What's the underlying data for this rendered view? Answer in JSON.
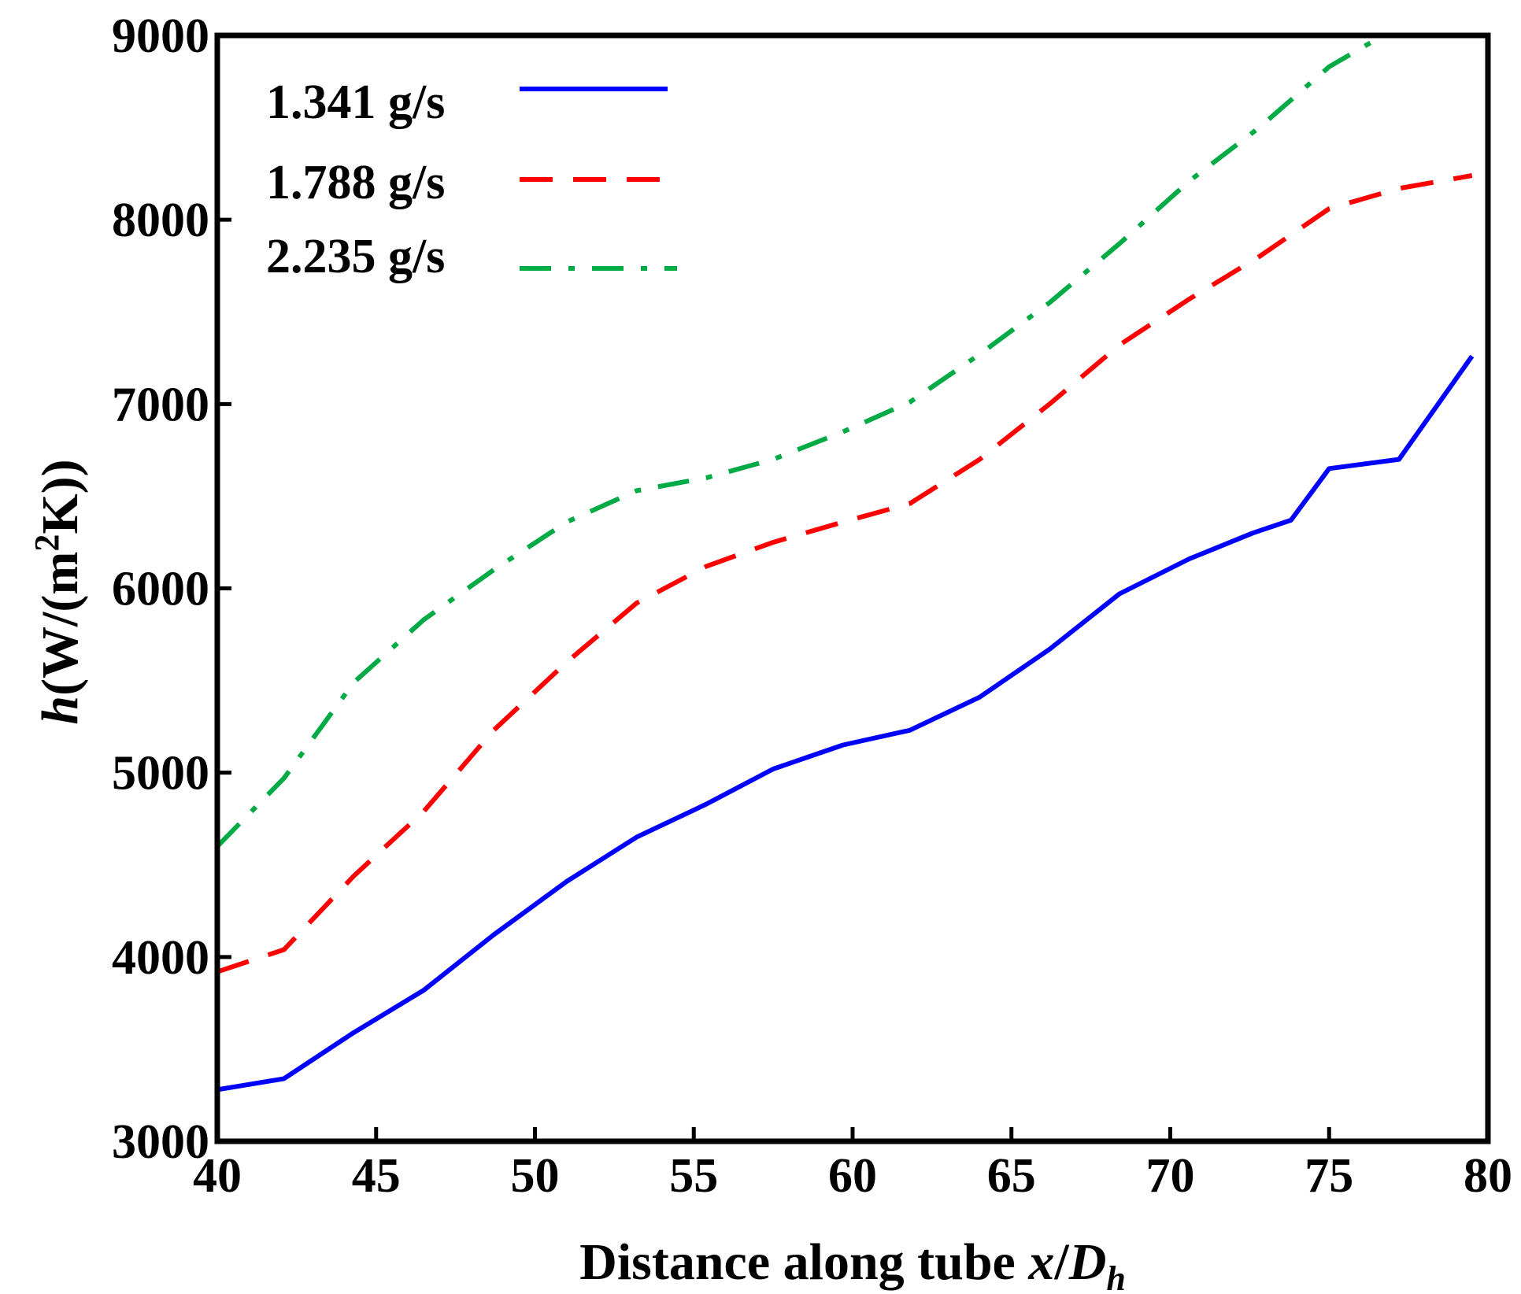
{
  "chart_data": {
    "type": "line",
    "title": "",
    "xlabel": {
      "prefix": "Distance along tube ",
      "var": "x",
      "slash": "/",
      "sym": "D",
      "sub": "h"
    },
    "ylabel": {
      "var": "h",
      "open": "(W/(m",
      "sup": "2",
      "close": "K))"
    },
    "xlim": [
      40,
      80
    ],
    "ylim": [
      3000,
      9000
    ],
    "xticks": [
      40,
      45,
      50,
      55,
      60,
      65,
      70,
      75,
      80
    ],
    "xtick_labels": [
      "40",
      "45",
      "50",
      "55",
      "60",
      "65",
      "70",
      "75",
      "80"
    ],
    "yticks": [
      3000,
      4000,
      5000,
      6000,
      7000,
      8000,
      9000
    ],
    "ytick_labels": [
      "3000",
      "4000",
      "5000",
      "6000",
      "7000",
      "8000",
      "9000"
    ],
    "grid": false,
    "legend_position": "top-left",
    "series": [
      {
        "name": "1.341 g/s",
        "color": "#0000ff",
        "style": "solid",
        "x": [
          40,
          42.1,
          44.3,
          46.5,
          48.7,
          51.0,
          53.2,
          55.4,
          57.5,
          59.7,
          61.8,
          64.0,
          66.2,
          68.4,
          70.6,
          72.6,
          73.8,
          75.0,
          77.2,
          79.5
        ],
        "y": [
          3280,
          3340,
          3590,
          3820,
          4120,
          4410,
          4650,
          4830,
          5020,
          5150,
          5230,
          5410,
          5670,
          5970,
          6160,
          6300,
          6370,
          6650,
          6700,
          7260
        ]
      },
      {
        "name": "1.788 g/s",
        "color": "#ff0000",
        "style": "dashed",
        "x": [
          40,
          42.1,
          44.3,
          46.5,
          48.7,
          51.0,
          53.2,
          55.4,
          57.5,
          59.7,
          61.8,
          64.0,
          66.2,
          68.4,
          70.6,
          72.8,
          75.0,
          77.2,
          79.5
        ],
        "y": [
          3920,
          4040,
          4440,
          4790,
          5230,
          5600,
          5920,
          6120,
          6250,
          6360,
          6460,
          6700,
          7000,
          7320,
          7570,
          7800,
          8060,
          8170,
          8240
        ]
      },
      {
        "name": "2.235 g/s",
        "color": "#00aa44",
        "style": "dashdot",
        "x": [
          40,
          42.1,
          44.3,
          46.5,
          48.7,
          51.0,
          53.2,
          55.4,
          57.5,
          59.7,
          61.8,
          64.0,
          66.2,
          68.4,
          70.6,
          72.8,
          75.0,
          76.7
        ],
        "y": [
          4600,
          4970,
          5490,
          5830,
          6100,
          6360,
          6530,
          6600,
          6700,
          6850,
          7010,
          7270,
          7550,
          7870,
          8210,
          8500,
          8830,
          9000
        ]
      }
    ]
  }
}
